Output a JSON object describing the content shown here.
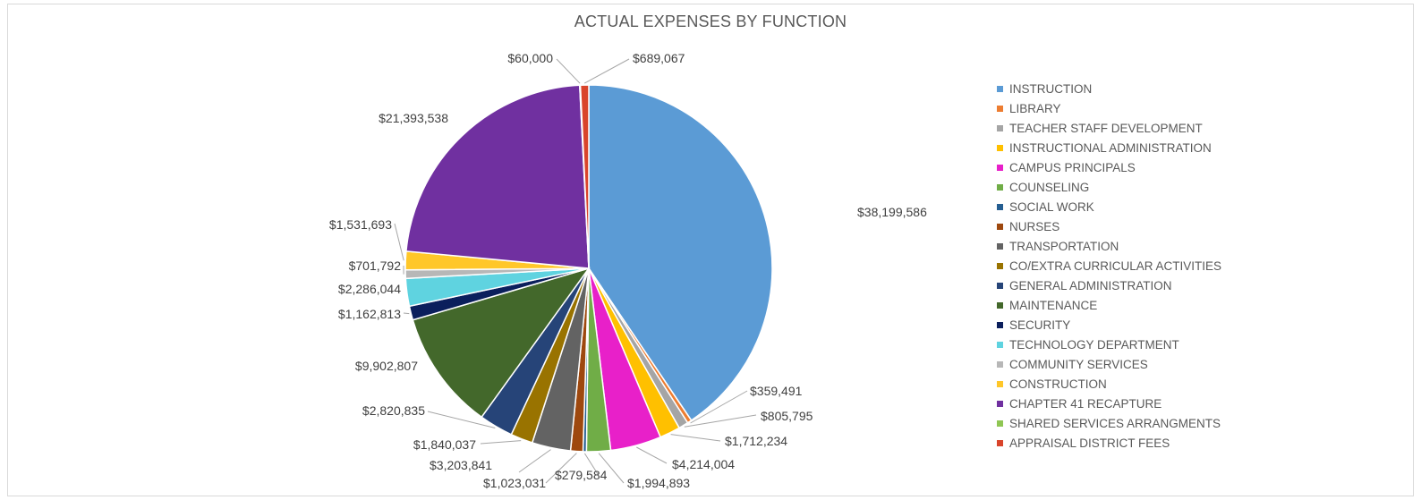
{
  "chart_data": {
    "type": "pie",
    "title": "ACTUAL EXPENSES BY FUNCTION",
    "legend_position": "right",
    "series": [
      {
        "name": "INSTRUCTION",
        "value": 38199586,
        "label": "$38,199,586",
        "color": "#5b9bd5"
      },
      {
        "name": "LIBRARY",
        "value": 359491,
        "label": "$359,491",
        "color": "#ed7d31"
      },
      {
        "name": "TEACHER STAFF DEVELOPMENT",
        "value": 805795,
        "label": "$805,795",
        "color": "#a5a5a5"
      },
      {
        "name": "INSTRUCTIONAL ADMINISTRATION",
        "value": 1712234,
        "label": "$1,712,234",
        "color": "#ffc000"
      },
      {
        "name": "CAMPUS PRINCIPALS",
        "value": 4214004,
        "label": "$4,214,004",
        "color": "#e820c9"
      },
      {
        "name": "COUNSELING",
        "value": 1994893,
        "label": "$1,994,893",
        "color": "#70ad47"
      },
      {
        "name": "SOCIAL WORK",
        "value": 279584,
        "label": "$279,584",
        "color": "#255e91"
      },
      {
        "name": "NURSES",
        "value": 1023031,
        "label": "$1,023,031",
        "color": "#9e480e"
      },
      {
        "name": "TRANSPORTATION",
        "value": 3203841,
        "label": "$3,203,841",
        "color": "#636363"
      },
      {
        "name": "CO/EXTRA CURRICULAR ACTIVITIES",
        "value": 1840037,
        "label": "$1,840,037",
        "color": "#997300"
      },
      {
        "name": "GENERAL ADMINISTRATION",
        "value": 2820835,
        "label": "$2,820,835",
        "color": "#264478"
      },
      {
        "name": "MAINTENANCE",
        "value": 9902807,
        "label": "$9,902,807",
        "color": "#43682b"
      },
      {
        "name": "SECURITY",
        "value": 1162813,
        "label": "$1,162,813",
        "color": "#0b1f5c"
      },
      {
        "name": "TECHNOLOGY DEPARTMENT",
        "value": 2286044,
        "label": "$2,286,044",
        "color": "#5fd3e0"
      },
      {
        "name": "COMMUNITY SERVICES",
        "value": 701792,
        "label": "$701,792",
        "color": "#b7b7b7"
      },
      {
        "name": "CONSTRUCTION",
        "value": 1531693,
        "label": "$1,531,693",
        "color": "#ffc729"
      },
      {
        "name": "CHAPTER 41 RECAPTURE",
        "value": 21393538,
        "label": "$21,393,538",
        "color": "#7030a0"
      },
      {
        "name": "SHARED SERVICES ARRANGMENTS",
        "value": 60000,
        "label": "$60,000",
        "color": "#8fc653"
      },
      {
        "name": "APPRAISAL DISTRICT FEES",
        "value": 689067,
        "label": "$689,067",
        "color": "#d9442b"
      }
    ]
  }
}
